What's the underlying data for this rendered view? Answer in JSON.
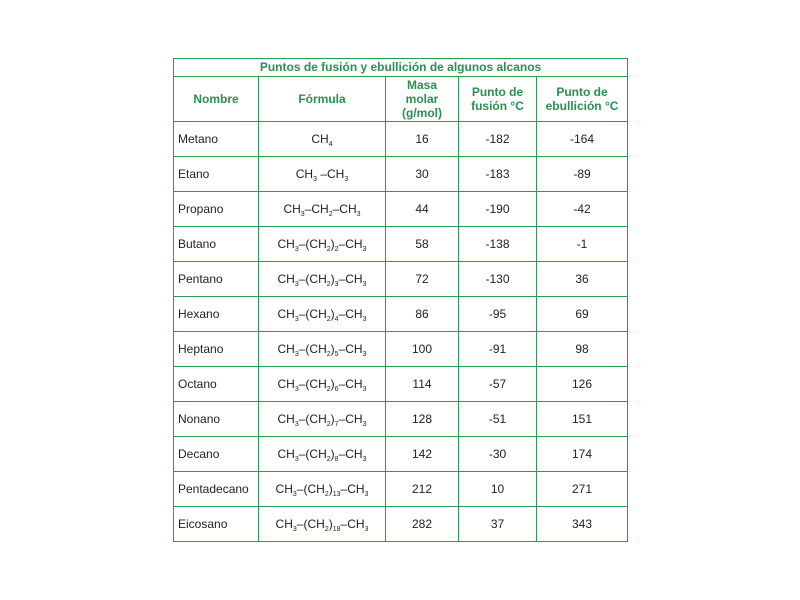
{
  "table": {
    "title": "Puntos de fusión y ebullición de algunos alcanos",
    "headers": {
      "name": "Nombre",
      "formula": "Fórmula",
      "mass": [
        "Masa",
        "molar",
        "(g/mol)"
      ],
      "melt": [
        "Punto de",
        "fusión °C"
      ],
      "boil": [
        "Punto de",
        "ebullición °C"
      ]
    },
    "rows": [
      {
        "name": "Metano",
        "formula": [
          [
            "CH",
            ""
          ],
          [
            "",
            "4"
          ]
        ],
        "mass": "16",
        "melt": "-182",
        "boil": "-164"
      },
      {
        "name": "Etano",
        "formula": [
          [
            "CH",
            ""
          ],
          [
            "",
            "3"
          ],
          [
            " –CH",
            ""
          ],
          [
            "",
            "3"
          ]
        ],
        "mass": "30",
        "melt": "-183",
        "boil": "-89"
      },
      {
        "name": "Propano",
        "formula": [
          [
            "CH",
            ""
          ],
          [
            "",
            "3"
          ],
          [
            "–CH",
            ""
          ],
          [
            "",
            "2"
          ],
          [
            "–CH",
            ""
          ],
          [
            "",
            "3"
          ]
        ],
        "mass": "44",
        "melt": "-190",
        "boil": "-42"
      },
      {
        "name": "Butano",
        "formula": [
          [
            "CH",
            ""
          ],
          [
            "",
            "3"
          ],
          [
            "–(CH",
            ""
          ],
          [
            "",
            "2"
          ],
          [
            ")",
            ""
          ],
          [
            "",
            "2"
          ],
          [
            "–CH",
            ""
          ],
          [
            "",
            "3"
          ]
        ],
        "mass": "58",
        "melt": "-138",
        "boil": "-1"
      },
      {
        "name": "Pentano",
        "formula": [
          [
            "CH",
            ""
          ],
          [
            "",
            "3"
          ],
          [
            "–(CH",
            ""
          ],
          [
            "",
            "2"
          ],
          [
            ")",
            ""
          ],
          [
            "",
            "3"
          ],
          [
            "–CH",
            ""
          ],
          [
            "",
            "3"
          ]
        ],
        "mass": "72",
        "melt": "-130",
        "boil": "36"
      },
      {
        "name": "Hexano",
        "formula": [
          [
            "CH",
            ""
          ],
          [
            "",
            "3"
          ],
          [
            "–(CH",
            ""
          ],
          [
            "",
            "2"
          ],
          [
            ")",
            ""
          ],
          [
            "",
            "4"
          ],
          [
            "–CH",
            ""
          ],
          [
            "",
            "3"
          ]
        ],
        "mass": "86",
        "melt": "-95",
        "boil": "69"
      },
      {
        "name": "Heptano",
        "formula": [
          [
            "CH",
            ""
          ],
          [
            "",
            "3"
          ],
          [
            "–(CH",
            ""
          ],
          [
            "",
            "2"
          ],
          [
            ")",
            ""
          ],
          [
            "",
            "5"
          ],
          [
            "–CH",
            ""
          ],
          [
            "",
            "3"
          ]
        ],
        "mass": "100",
        "melt": "-91",
        "boil": "98"
      },
      {
        "name": "Octano",
        "formula": [
          [
            "CH",
            ""
          ],
          [
            "",
            "3"
          ],
          [
            "–(CH",
            ""
          ],
          [
            "",
            "2"
          ],
          [
            ")",
            ""
          ],
          [
            "",
            "6"
          ],
          [
            "–CH",
            ""
          ],
          [
            "",
            "3"
          ]
        ],
        "mass": "114",
        "melt": "-57",
        "boil": "126"
      },
      {
        "name": "Nonano",
        "formula": [
          [
            "CH",
            ""
          ],
          [
            "",
            "3"
          ],
          [
            "–(CH",
            ""
          ],
          [
            "",
            "2"
          ],
          [
            ")",
            ""
          ],
          [
            "",
            "7"
          ],
          [
            "–CH",
            ""
          ],
          [
            "",
            "3"
          ]
        ],
        "mass": "128",
        "melt": "-51",
        "boil": "151"
      },
      {
        "name": "Decano",
        "formula": [
          [
            "CH",
            ""
          ],
          [
            "",
            "3"
          ],
          [
            "–(CH",
            ""
          ],
          [
            "",
            "2"
          ],
          [
            ")",
            ""
          ],
          [
            "",
            "8"
          ],
          [
            "–CH",
            ""
          ],
          [
            "",
            "3"
          ]
        ],
        "mass": "142",
        "melt": "-30",
        "boil": "174"
      },
      {
        "name": "Pentadecano",
        "formula": [
          [
            "CH",
            ""
          ],
          [
            "",
            "3"
          ],
          [
            "–(CH",
            ""
          ],
          [
            "",
            "2"
          ],
          [
            ")",
            ""
          ],
          [
            "",
            "13"
          ],
          [
            "–CH",
            ""
          ],
          [
            "",
            "3"
          ]
        ],
        "mass": "212",
        "melt": "10",
        "boil": "271"
      },
      {
        "name": "Eicosano",
        "formula": [
          [
            "CH",
            ""
          ],
          [
            "",
            "3"
          ],
          [
            "–(CH",
            ""
          ],
          [
            "",
            "2"
          ],
          [
            ")",
            ""
          ],
          [
            "",
            "18"
          ],
          [
            "–CH",
            ""
          ],
          [
            "",
            "3"
          ]
        ],
        "mass": "282",
        "melt": "37",
        "boil": "343"
      }
    ],
    "colors": {
      "border": "#2b9a55",
      "header_text": "#2b8f4f"
    }
  }
}
